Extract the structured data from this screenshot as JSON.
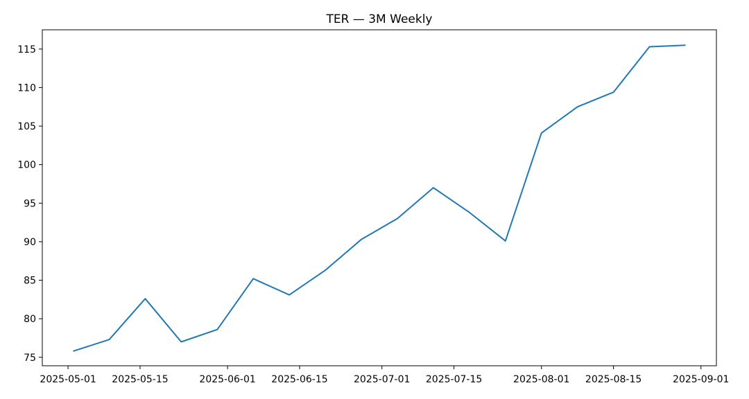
{
  "chart_data": {
    "type": "line",
    "title": "TER — 3M Weekly",
    "xlabel": "",
    "ylabel": "",
    "x_axis_type": "date",
    "xlim": [
      "2025-04-26",
      "2025-09-04"
    ],
    "ylim": [
      73.9,
      117.5
    ],
    "x_ticks": [
      "2025-05-01",
      "2025-05-15",
      "2025-06-01",
      "2025-06-15",
      "2025-07-01",
      "2025-07-15",
      "2025-08-01",
      "2025-08-15",
      "2025-09-01"
    ],
    "y_ticks": [
      75,
      80,
      85,
      90,
      95,
      100,
      105,
      110,
      115
    ],
    "grid": false,
    "legend": "none",
    "series": [
      {
        "color": "#1f77b4",
        "x": [
          "2025-05-02",
          "2025-05-09",
          "2025-05-16",
          "2025-05-23",
          "2025-05-30",
          "2025-06-06",
          "2025-06-13",
          "2025-06-20",
          "2025-06-27",
          "2025-07-04",
          "2025-07-11",
          "2025-07-18",
          "2025-07-25",
          "2025-08-01",
          "2025-08-08",
          "2025-08-15",
          "2025-08-22",
          "2025-08-29"
        ],
        "values": [
          75.8,
          77.3,
          82.6,
          77.0,
          78.6,
          85.2,
          83.1,
          86.3,
          90.3,
          93.0,
          97.0,
          93.8,
          90.1,
          104.1,
          107.5,
          109.4,
          115.3,
          115.5
        ]
      }
    ]
  }
}
